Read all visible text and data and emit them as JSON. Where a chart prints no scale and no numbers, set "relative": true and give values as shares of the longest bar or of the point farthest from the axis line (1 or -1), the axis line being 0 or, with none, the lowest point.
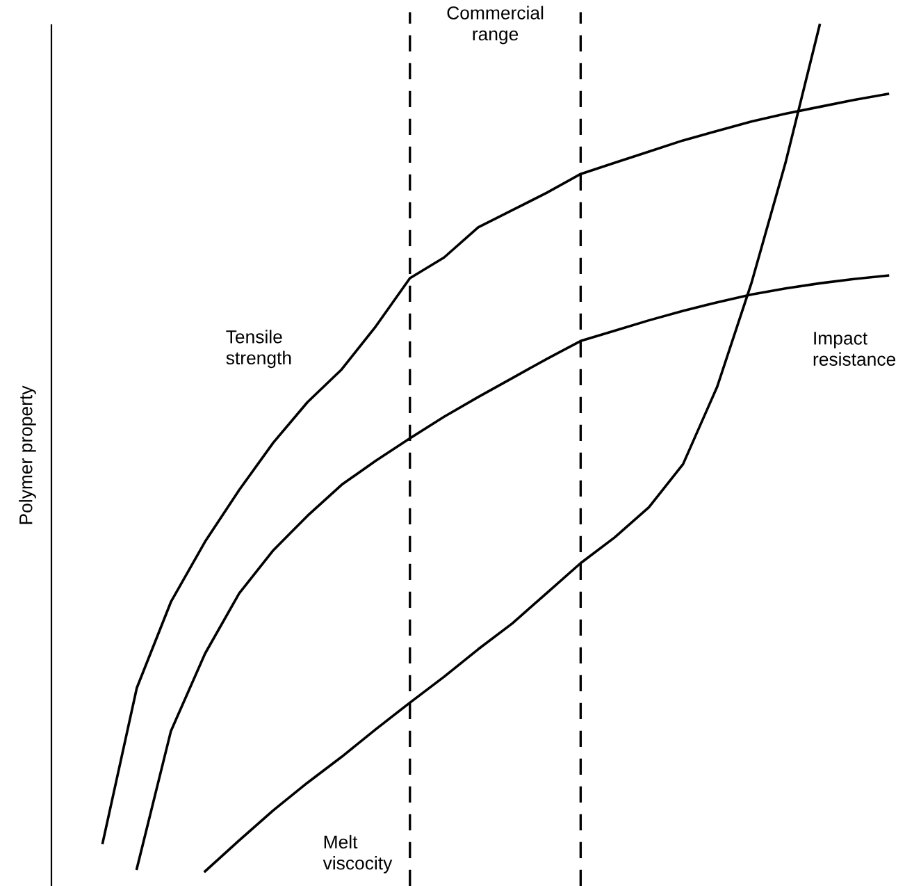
{
  "chart_data": {
    "type": "line",
    "relative": true,
    "ylabel": "Polymer property",
    "marker": "none",
    "line_style": "solid",
    "categories": [
      null,
      null,
      null,
      null,
      null,
      null,
      null,
      null,
      null,
      null,
      null,
      null,
      null,
      null,
      null,
      null,
      null,
      null,
      null,
      null,
      null,
      null,
      null,
      null,
      null
    ],
    "series": [
      {
        "name": "Tensile strength",
        "color": "#000000",
        "values": [
          null,
          0.05,
          0.23,
          0.33,
          0.4,
          0.46,
          0.515,
          0.562,
          0.6,
          0.65,
          0.706,
          0.73,
          0.765,
          0.785,
          0.805,
          0.827,
          0.84,
          0.853,
          0.866,
          0.877,
          0.888,
          0.897,
          0.905,
          0.913,
          0.92
        ]
      },
      {
        "name": "Impact resistance",
        "color": "#000000",
        "values": [
          null,
          null,
          0.02,
          0.18,
          0.27,
          0.34,
          0.39,
          0.43,
          0.466,
          0.494,
          0.52,
          0.545,
          0.568,
          0.59,
          0.612,
          0.633,
          0.645,
          0.657,
          0.668,
          0.678,
          0.687,
          0.694,
          0.7,
          0.705,
          0.709
        ]
      },
      {
        "name": "Melt viscocity",
        "color": "#000000",
        "values": [
          null,
          null,
          null,
          null,
          0.017,
          0.053,
          0.088,
          0.12,
          0.15,
          0.182,
          0.213,
          0.243,
          0.275,
          0.305,
          0.34,
          0.375,
          0.405,
          0.44,
          0.49,
          0.58,
          0.7,
          0.84,
          1.0,
          null,
          null
        ]
      }
    ],
    "annotations": [
      "Commercial\nrange"
    ]
  }
}
